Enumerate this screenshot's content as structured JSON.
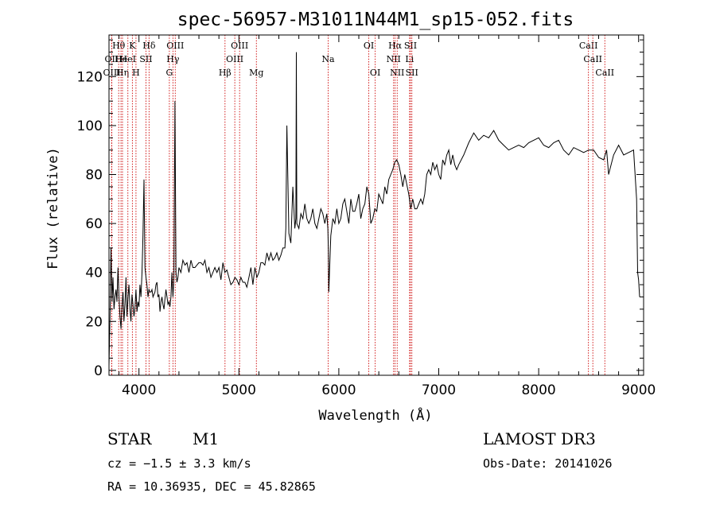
{
  "chart_data": {
    "type": "line",
    "title": "spec-56957-M31011N44M1_sp15-052.fits",
    "xlabel": "Wavelength (Å)",
    "ylabel": "Flux (relative)",
    "xlim": [
      3700,
      9050
    ],
    "ylim": [
      -2,
      137
    ],
    "xticks": [
      4000,
      5000,
      6000,
      7000,
      8000,
      9000
    ],
    "yticks": [
      0,
      20,
      40,
      60,
      80,
      100,
      120
    ],
    "grid": false,
    "series": [
      {
        "x": [
          3700,
          3710,
          3720,
          3730,
          3740,
          3750,
          3760,
          3770,
          3780,
          3790,
          3800,
          3810,
          3820,
          3830,
          3840,
          3850,
          3860,
          3870,
          3880,
          3890,
          3900,
          3910,
          3920,
          3930,
          3940,
          3950,
          3960,
          3970,
          3980,
          3990,
          4000,
          4010,
          4020,
          4030,
          4040,
          4050,
          4060,
          4070,
          4080,
          4090,
          4100,
          4110,
          4120,
          4130,
          4140,
          4150,
          4160,
          4170,
          4180,
          4190,
          4200,
          4210,
          4220,
          4230,
          4240,
          4250,
          4260,
          4270,
          4280,
          4290,
          4300,
          4310,
          4320,
          4330,
          4340,
          4350,
          4360,
          4370,
          4380,
          4390,
          4400,
          4420,
          4440,
          4460,
          4480,
          4500,
          4520,
          4540,
          4560,
          4580,
          4600,
          4620,
          4640,
          4660,
          4680,
          4700,
          4720,
          4740,
          4760,
          4780,
          4800,
          4820,
          4840,
          4860,
          4880,
          4900,
          4920,
          4940,
          4960,
          4980,
          5000,
          5020,
          5040,
          5060,
          5080,
          5100,
          5120,
          5140,
          5160,
          5180,
          5200,
          5220,
          5240,
          5260,
          5280,
          5300,
          5320,
          5340,
          5360,
          5380,
          5400,
          5420,
          5440,
          5460,
          5470,
          5480,
          5500,
          5520,
          5540,
          5560,
          5570,
          5575,
          5580,
          5600,
          5620,
          5640,
          5660,
          5680,
          5700,
          5720,
          5740,
          5760,
          5780,
          5800,
          5820,
          5840,
          5860,
          5880,
          5890,
          5895,
          5900,
          5920,
          5940,
          5960,
          5980,
          6000,
          6020,
          6040,
          6060,
          6080,
          6100,
          6120,
          6140,
          6160,
          6180,
          6200,
          6220,
          6240,
          6260,
          6280,
          6300,
          6320,
          6340,
          6360,
          6380,
          6400,
          6420,
          6440,
          6460,
          6480,
          6500,
          6520,
          6540,
          6560,
          6580,
          6600,
          6620,
          6640,
          6660,
          6680,
          6700,
          6720,
          6740,
          6760,
          6780,
          6800,
          6820,
          6840,
          6860,
          6880,
          6900,
          6920,
          6940,
          6960,
          6980,
          7000,
          7020,
          7040,
          7060,
          7080,
          7100,
          7120,
          7140,
          7160,
          7180,
          7200,
          7250,
          7300,
          7350,
          7400,
          7450,
          7500,
          7550,
          7600,
          7650,
          7700,
          7750,
          7800,
          7850,
          7900,
          7950,
          8000,
          8050,
          8100,
          8150,
          8200,
          8250,
          8300,
          8350,
          8400,
          8450,
          8500,
          8550,
          8600,
          8650,
          8680,
          8700,
          8750,
          8800,
          8850,
          8900,
          8950,
          8980,
          8990,
          9000,
          9010
        ],
        "y": [
          2,
          22,
          50,
          28,
          38,
          25,
          30,
          33,
          28,
          42,
          30,
          22,
          17,
          26,
          32,
          20,
          27,
          38,
          22,
          30,
          35,
          25,
          20,
          31,
          27,
          22,
          26,
          33,
          24,
          28,
          26,
          35,
          30,
          40,
          55,
          78,
          42,
          38,
          35,
          30,
          33,
          32,
          32,
          33,
          30,
          31,
          32,
          35,
          36,
          30,
          31,
          24,
          28,
          30,
          27,
          25,
          29,
          33,
          30,
          27,
          28,
          26,
          30,
          40,
          30,
          38,
          110,
          40,
          36,
          38,
          42,
          40,
          45,
          43,
          44,
          40,
          45,
          42,
          42,
          43,
          44,
          44,
          43,
          45,
          40,
          42,
          38,
          40,
          42,
          40,
          42,
          37,
          44,
          40,
          41,
          38,
          35,
          36,
          38,
          37,
          35,
          38,
          36,
          36,
          34,
          38,
          42,
          35,
          42,
          38,
          40,
          44,
          44,
          43,
          48,
          45,
          48,
          45,
          46,
          48,
          45,
          47,
          50,
          50,
          58,
          100,
          56,
          52,
          75,
          58,
          62,
          130,
          60,
          58,
          64,
          62,
          68,
          62,
          60,
          62,
          66,
          60,
          58,
          62,
          66,
          64,
          60,
          64,
          58,
          50,
          32,
          55,
          62,
          60,
          66,
          60,
          62,
          68,
          70,
          65,
          60,
          70,
          65,
          65,
          68,
          72,
          62,
          66,
          68,
          75,
          72,
          60,
          62,
          66,
          65,
          72,
          70,
          68,
          75,
          72,
          78,
          80,
          82,
          85,
          86,
          84,
          80,
          75,
          80,
          76,
          72,
          66,
          70,
          66,
          66,
          68,
          70,
          68,
          72,
          80,
          82,
          80,
          85,
          82,
          84,
          80,
          78,
          86,
          84,
          88,
          90,
          84,
          88,
          84,
          82,
          84,
          88,
          93,
          97,
          94,
          96,
          95,
          98,
          94,
          92,
          90,
          91,
          92,
          91,
          93,
          94,
          95,
          92,
          91,
          93,
          94,
          90,
          88,
          91,
          90,
          89,
          90,
          90,
          87,
          86,
          90,
          80,
          88,
          92,
          88,
          89,
          90,
          70,
          40,
          37,
          30
        ]
      }
    ],
    "lines": [
      {
        "w": 3797,
        "label": "Hθ",
        "row": 1
      },
      {
        "w": 3727,
        "label": "OII",
        "row": 2
      },
      {
        "w": 3820,
        "label": "He",
        "row": 2
      },
      {
        "w": 3728,
        "label": "OIII",
        "row": 3
      },
      {
        "w": 3835,
        "label": "Hη",
        "row": 3
      },
      {
        "w": 3934,
        "label": "K",
        "row": 1
      },
      {
        "w": 3889,
        "label": "HeI",
        "row": 2
      },
      {
        "w": 3970,
        "label": "H",
        "row": 3
      },
      {
        "w": 4101,
        "label": "Hδ",
        "row": 1
      },
      {
        "w": 4070,
        "label": "SII",
        "row": 2
      },
      {
        "w": 4363,
        "label": "OIII",
        "row": 1
      },
      {
        "w": 4340,
        "label": "Hγ",
        "row": 2
      },
      {
        "w": 4304,
        "label": "G",
        "row": 3
      },
      {
        "w": 4861,
        "label": "Hβ",
        "row": 3
      },
      {
        "w": 4959,
        "label": "OIII",
        "row": 2
      },
      {
        "w": 5007,
        "label": "OIII",
        "row": 1
      },
      {
        "w": 5175,
        "label": "Mg",
        "row": 3
      },
      {
        "w": 5893,
        "label": "Na",
        "row": 2
      },
      {
        "w": 6300,
        "label": "OI",
        "row": 1
      },
      {
        "w": 6364,
        "label": "OI",
        "row": 3
      },
      {
        "w": 6548,
        "label": "NII",
        "row": 2
      },
      {
        "w": 6563,
        "label": "Hα",
        "row": 1
      },
      {
        "w": 6584,
        "label": "NII",
        "row": 3
      },
      {
        "w": 6708,
        "label": "Li",
        "row": 2
      },
      {
        "w": 6717,
        "label": "SII",
        "row": 1
      },
      {
        "w": 6731,
        "label": "SII",
        "row": 3
      },
      {
        "w": 8498,
        "label": "CaII",
        "row": 1
      },
      {
        "w": 8542,
        "label": "CaII",
        "row": 2
      },
      {
        "w": 8662,
        "label": "CaII",
        "row": 3
      }
    ]
  },
  "info": {
    "object_class": "STAR",
    "subclass": "M1",
    "survey": "LAMOST DR3",
    "redshift": "cz = −1.5 ± 3.3 km/s",
    "obs_date": "Obs-Date: 20141026",
    "coords": "RA =  10.36935, DEC =  45.82865"
  },
  "colors": {
    "spectrum": "#000000",
    "line_marker": "#cc0000",
    "axes": "#000000"
  }
}
